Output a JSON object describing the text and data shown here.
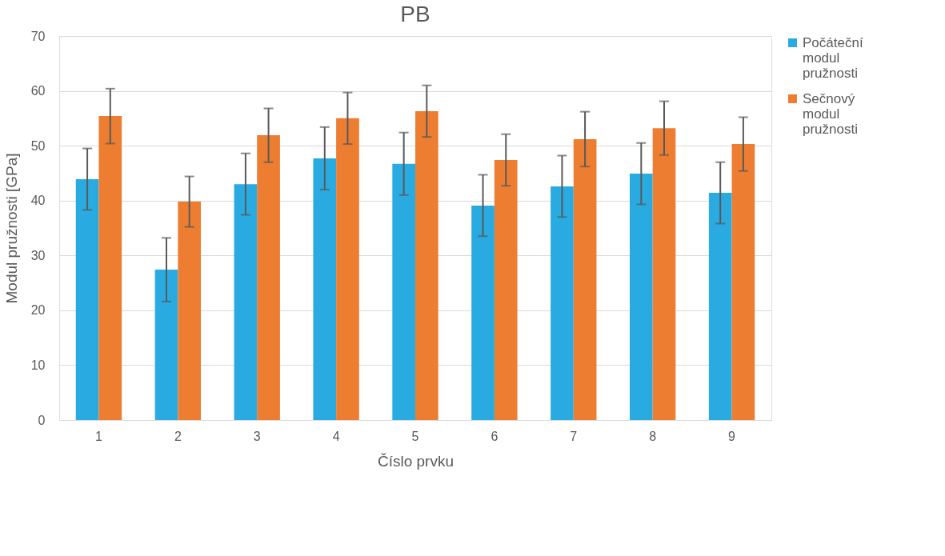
{
  "chart_data": {
    "type": "bar",
    "title": "PB",
    "xlabel": "Číslo prvku",
    "ylabel": "Modul pružnosti [GPa]",
    "categories": [
      "1",
      "2",
      "3",
      "4",
      "5",
      "6",
      "7",
      "8",
      "9"
    ],
    "series": [
      {
        "name": "Počáteční modul pružnosti",
        "color": "#29abe2",
        "values": [
          43.9,
          27.4,
          43.0,
          47.7,
          46.7,
          39.1,
          42.6,
          44.9,
          41.4
        ],
        "errors": [
          5.6,
          5.8,
          5.6,
          5.7,
          5.7,
          5.6,
          5.6,
          5.6,
          5.6
        ]
      },
      {
        "name": "Sečnový modul pružnosti",
        "color": "#ed7d31",
        "values": [
          55.4,
          39.8,
          51.9,
          55.0,
          56.3,
          47.4,
          51.2,
          53.2,
          50.3
        ],
        "errors": [
          5.0,
          4.6,
          4.9,
          4.7,
          4.7,
          4.7,
          5.0,
          4.9,
          4.9
        ]
      }
    ],
    "ylim": [
      0,
      70
    ],
    "yticks": [
      0,
      10,
      20,
      30,
      40,
      50,
      60,
      70
    ],
    "grid": "y",
    "legend": "right"
  }
}
